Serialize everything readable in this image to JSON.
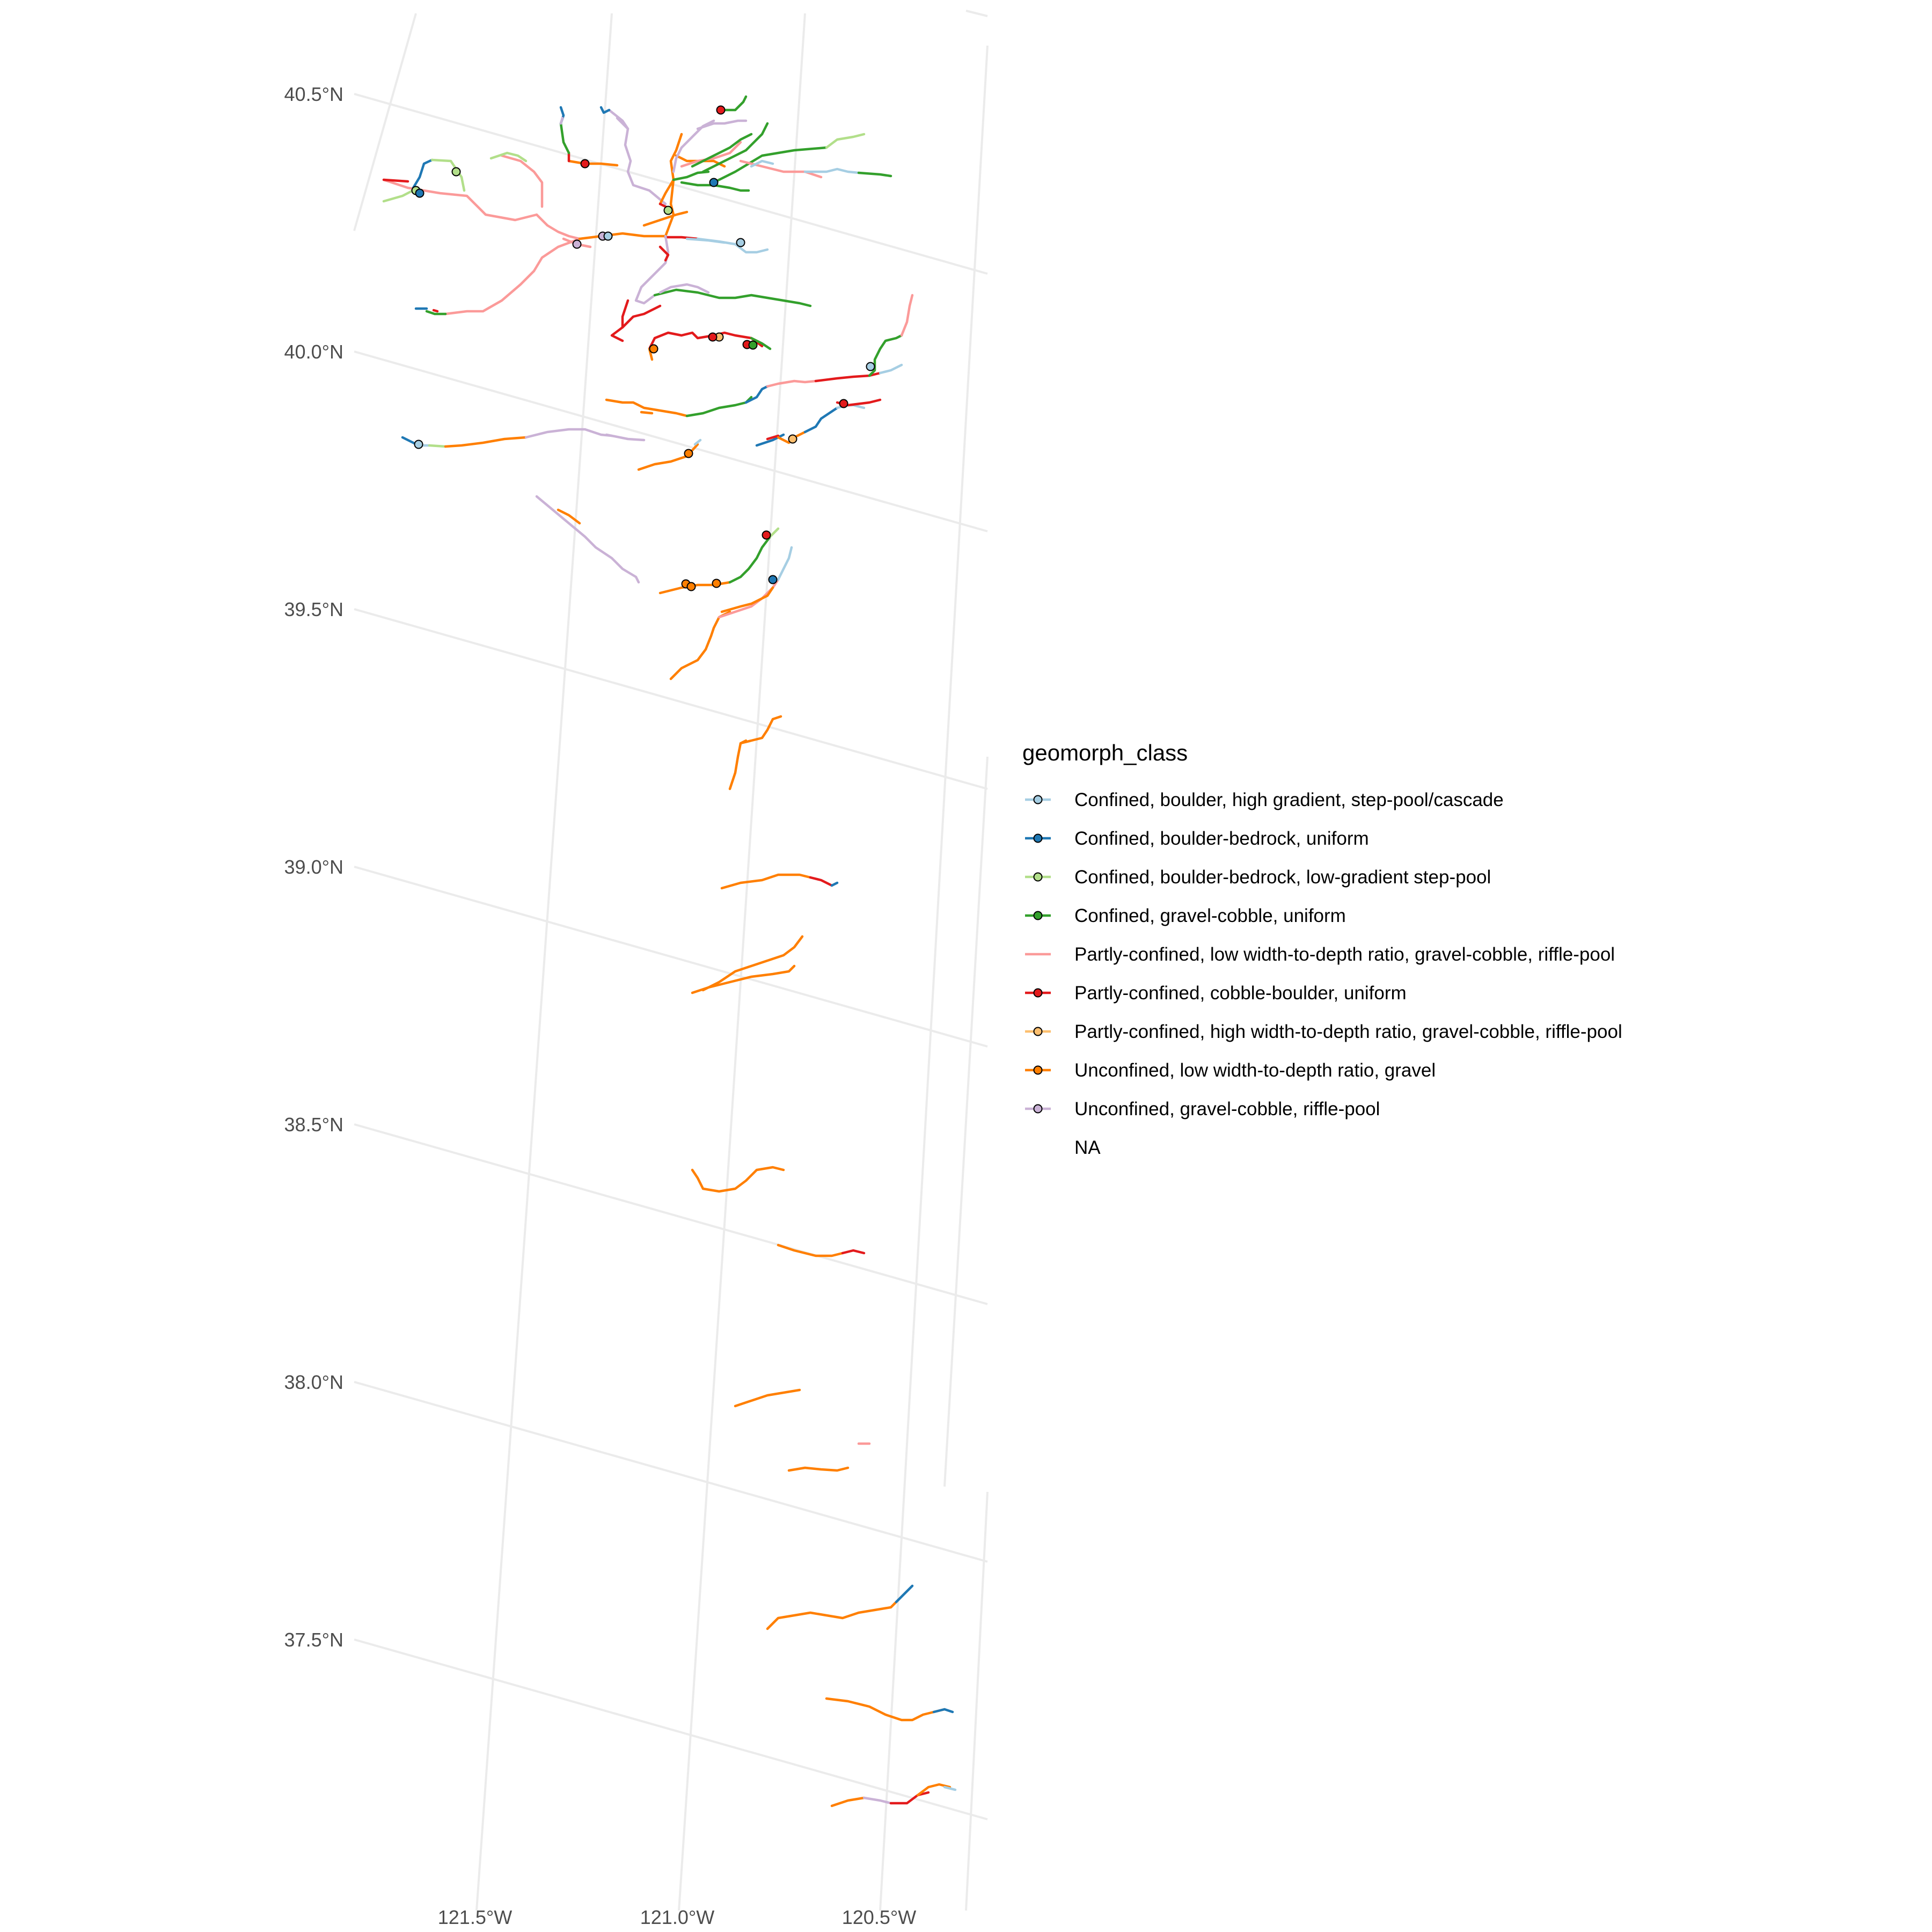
{
  "map": {
    "legend_title": "geomorph_class",
    "lat_labels": [
      "40.5°N",
      "40.0°N",
      "39.5°N",
      "39.0°N",
      "38.5°N",
      "38.0°N",
      "37.5°N"
    ],
    "lon_labels": [
      "121.5°W",
      "121.0°W",
      "120.5°W"
    ],
    "classes": [
      {
        "key": "c1",
        "label": "Confined, boulder, high gradient, step-pool/cascade",
        "color": "#A6CEE3",
        "has_point": true
      },
      {
        "key": "c2",
        "label": "Confined, boulder-bedrock, uniform",
        "color": "#1F78B4",
        "has_point": true
      },
      {
        "key": "c3",
        "label": "Confined, boulder-bedrock, low-gradient step-pool",
        "color": "#B2DF8A",
        "has_point": true
      },
      {
        "key": "c4",
        "label": "Confined, gravel-cobble, uniform",
        "color": "#33A02C",
        "has_point": true
      },
      {
        "key": "c5",
        "label": "Partly-confined, low width-to-depth ratio, gravel-cobble, riffle-pool",
        "color": "#FB9A99",
        "has_point": false
      },
      {
        "key": "c6",
        "label": "Partly-confined, cobble-boulder, uniform",
        "color": "#E31A1C",
        "has_point": true
      },
      {
        "key": "c7",
        "label": "Partly-confined, high width-to-depth ratio, gravel-cobble, riffle-pool",
        "color": "#FDBF6F",
        "has_point": true
      },
      {
        "key": "c8",
        "label": "Unconfined, low width-to-depth ratio, gravel",
        "color": "#FF7F00",
        "has_point": true
      },
      {
        "key": "c9",
        "label": "Unconfined, gravel-cobble, riffle-pool",
        "color": "#CAB2D6",
        "has_point": true
      },
      {
        "key": "na",
        "label": "NA",
        "color": "",
        "has_point": false
      }
    ]
  }
}
